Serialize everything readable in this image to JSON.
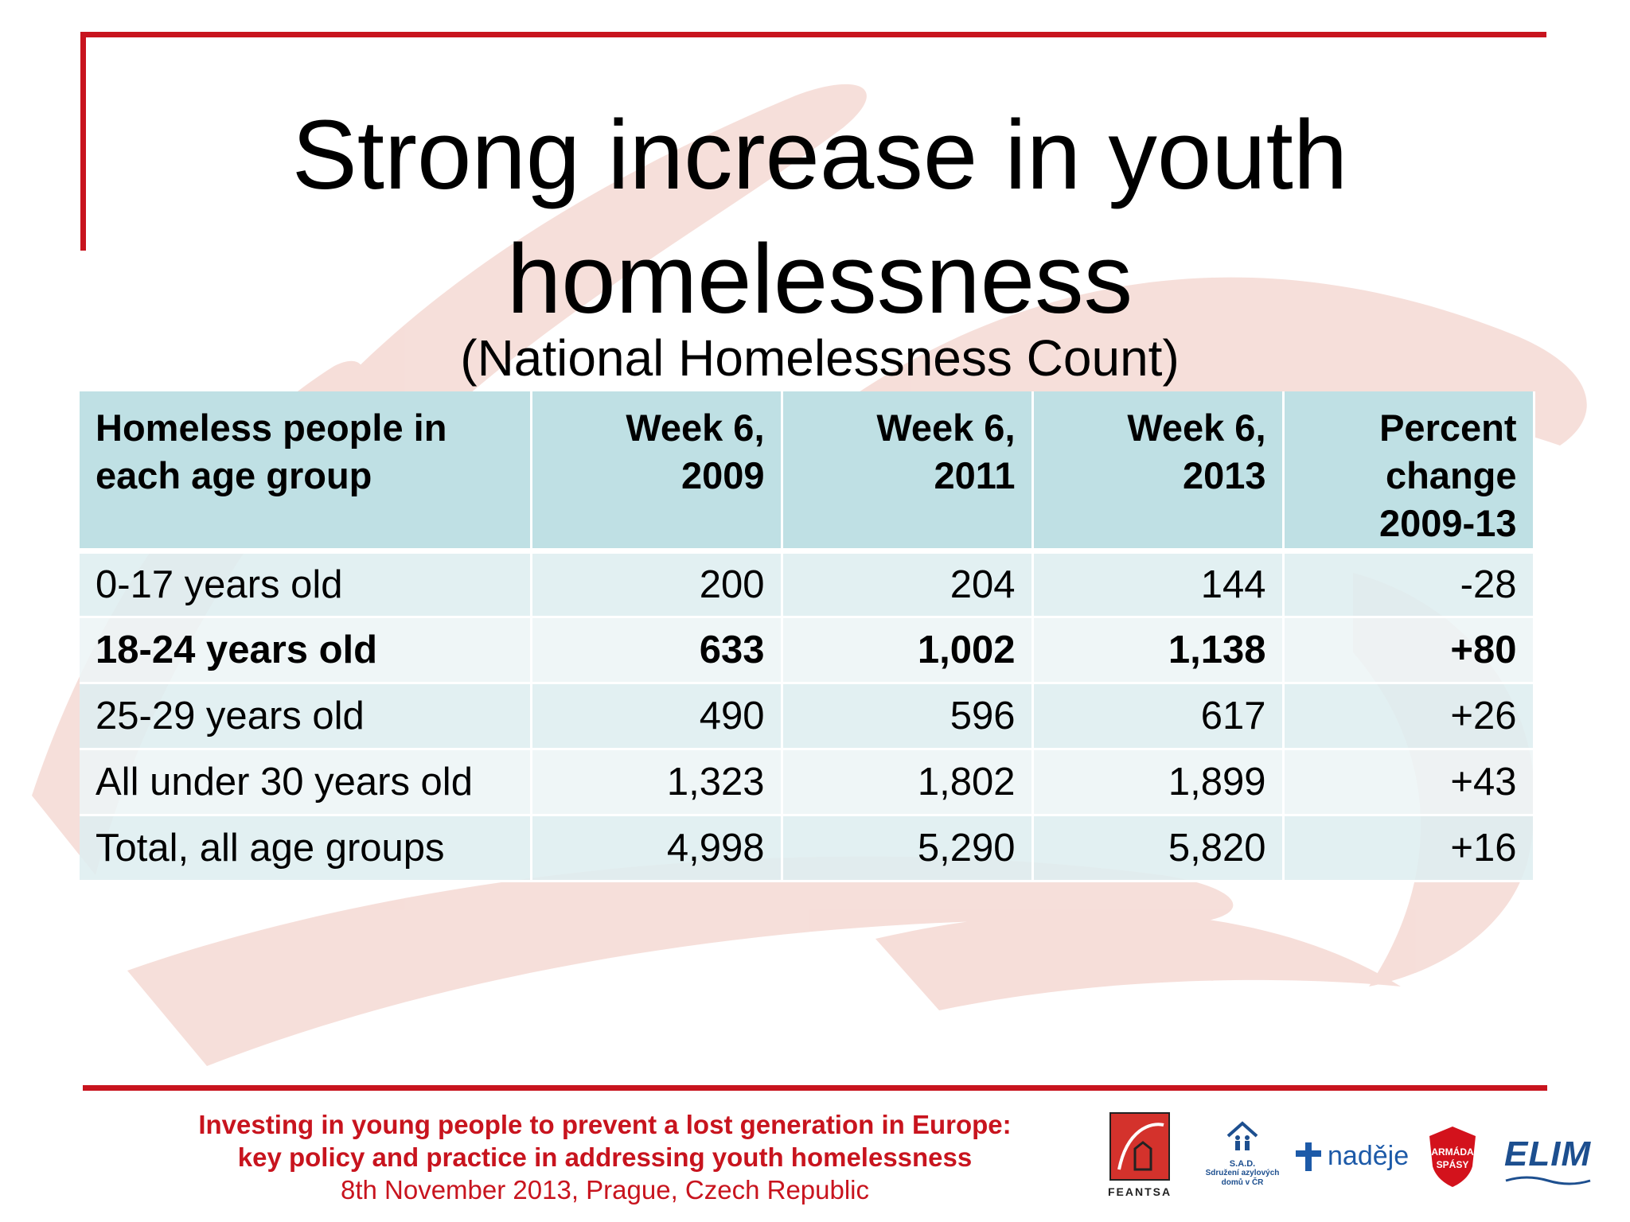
{
  "slide": {
    "title_line1": "Strong increase in youth",
    "title_line2": "homelessness",
    "subtitle": "(National Homelessness Count)"
  },
  "table": {
    "headers": [
      {
        "line1": "Homeless people in",
        "line2": "each age group",
        "line3": ""
      },
      {
        "line1": "Week 6,",
        "line2": "2009",
        "line3": ""
      },
      {
        "line1": "Week 6,",
        "line2": "2011",
        "line3": ""
      },
      {
        "line1": "Week 6,",
        "line2": "2013",
        "line3": ""
      },
      {
        "line1": "Percent",
        "line2": "change",
        "line3": "2009-13"
      }
    ],
    "rows": [
      {
        "label": "0-17 years old",
        "values": [
          "200",
          "204",
          "144",
          "-28"
        ]
      },
      {
        "label": "18-24 years old",
        "values": [
          "633",
          "1,002",
          "1,138",
          "+80"
        ]
      },
      {
        "label": "25-29 years old",
        "values": [
          "490",
          "596",
          "617",
          "+26"
        ]
      },
      {
        "label": "All under 30 years old",
        "values": [
          "1,323",
          "1,802",
          "1,899",
          "+43"
        ]
      },
      {
        "label": "Total, all age groups",
        "values": [
          "4,998",
          "5,290",
          "5,820",
          "+16"
        ]
      }
    ]
  },
  "footer": {
    "line1": "Investing in young people to prevent a lost generation in Europe:",
    "line2": "key policy and practice in addressing youth homelessness",
    "line3": "8th November 2013, Prague, Czech Republic"
  },
  "logos": {
    "feantsa": "FEANTSA",
    "sad_abbr": "S.A.D.",
    "sad_caption_1": "Sdružení azylových",
    "sad_caption_2": "domů v ČR",
    "nadeje": "naděje",
    "armada_1": "ARMÁDA",
    "armada_2": "SPÁSY",
    "elim": "ELIM"
  },
  "colors": {
    "accent_red": "#c8141e",
    "header_teal": "#bfe0e4",
    "swirl_pink": "#efc4bb"
  }
}
